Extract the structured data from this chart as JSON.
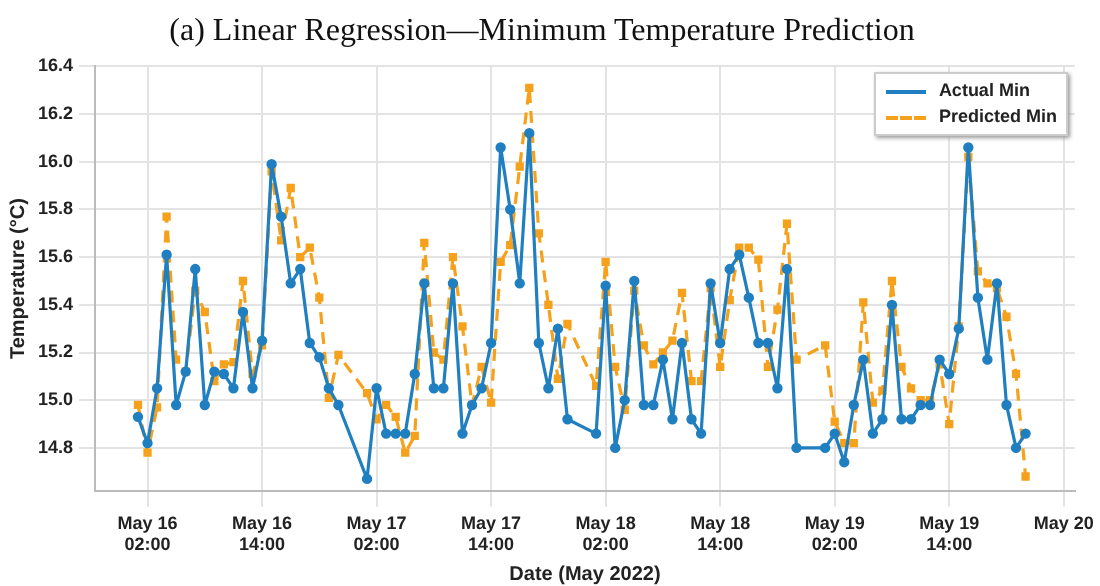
{
  "chart_data": {
    "type": "line",
    "title": "(a) Linear Regression—Minimum Temperature Prediction",
    "xlabel": "Date (May 2022)",
    "ylabel": "Temperature (°C)",
    "x": [
      "2022-05-16T01:00",
      "2022-05-16T02:00",
      "2022-05-16T03:00",
      "2022-05-16T04:00",
      "2022-05-16T05:00",
      "2022-05-16T06:00",
      "2022-05-16T07:00",
      "2022-05-16T08:00",
      "2022-05-16T09:00",
      "2022-05-16T10:00",
      "2022-05-16T11:00",
      "2022-05-16T12:00",
      "2022-05-16T13:00",
      "2022-05-16T14:00",
      "2022-05-16T15:00",
      "2022-05-16T16:00",
      "2022-05-16T17:00",
      "2022-05-16T18:00",
      "2022-05-16T19:00",
      "2022-05-16T20:00",
      "2022-05-16T21:00",
      "2022-05-16T22:00",
      "2022-05-17T01:00",
      "2022-05-17T02:00",
      "2022-05-17T03:00",
      "2022-05-17T04:00",
      "2022-05-17T05:00",
      "2022-05-17T06:00",
      "2022-05-17T07:00",
      "2022-05-17T08:00",
      "2022-05-17T09:00",
      "2022-05-17T10:00",
      "2022-05-17T11:00",
      "2022-05-17T12:00",
      "2022-05-17T13:00",
      "2022-05-17T14:00",
      "2022-05-17T15:00",
      "2022-05-17T16:00",
      "2022-05-17T17:00",
      "2022-05-17T18:00",
      "2022-05-17T19:00",
      "2022-05-17T20:00",
      "2022-05-17T21:00",
      "2022-05-17T22:00",
      "2022-05-18T01:00",
      "2022-05-18T02:00",
      "2022-05-18T03:00",
      "2022-05-18T04:00",
      "2022-05-18T05:00",
      "2022-05-18T06:00",
      "2022-05-18T07:00",
      "2022-05-18T08:00",
      "2022-05-18T09:00",
      "2022-05-18T10:00",
      "2022-05-18T11:00",
      "2022-05-18T12:00",
      "2022-05-18T13:00",
      "2022-05-18T14:00",
      "2022-05-18T15:00",
      "2022-05-18T16:00",
      "2022-05-18T17:00",
      "2022-05-18T18:00",
      "2022-05-18T19:00",
      "2022-05-18T20:00",
      "2022-05-18T21:00",
      "2022-05-18T22:00",
      "2022-05-19T01:00",
      "2022-05-19T02:00",
      "2022-05-19T03:00",
      "2022-05-19T04:00",
      "2022-05-19T05:00",
      "2022-05-19T06:00",
      "2022-05-19T07:00",
      "2022-05-19T08:00",
      "2022-05-19T09:00",
      "2022-05-19T10:00",
      "2022-05-19T11:00",
      "2022-05-19T12:00",
      "2022-05-19T13:00",
      "2022-05-19T14:00",
      "2022-05-19T15:00",
      "2022-05-19T16:00",
      "2022-05-19T17:00",
      "2022-05-19T18:00",
      "2022-05-19T19:00",
      "2022-05-19T20:00",
      "2022-05-19T21:00",
      "2022-05-19T22:00"
    ],
    "series": [
      {
        "name": "Actual Min",
        "color": "#1f7fc0",
        "marker": "circle",
        "line_style": "solid",
        "values": [
          14.93,
          14.82,
          15.05,
          15.61,
          14.98,
          15.12,
          15.55,
          14.98,
          15.12,
          15.11,
          15.05,
          15.37,
          15.05,
          15.25,
          15.99,
          15.77,
          15.49,
          15.55,
          15.24,
          15.18,
          15.05,
          14.98,
          14.67,
          15.05,
          14.86,
          14.86,
          14.86,
          15.11,
          15.49,
          15.05,
          15.05,
          15.49,
          14.86,
          14.98,
          15.05,
          15.24,
          16.06,
          15.8,
          15.49,
          16.12,
          15.24,
          15.05,
          15.3,
          14.92,
          14.86,
          15.48,
          14.8,
          15.0,
          15.5,
          14.98,
          14.98,
          15.17,
          14.92,
          15.24,
          14.92,
          14.86,
          15.49,
          15.24,
          15.55,
          15.61,
          15.43,
          15.24,
          15.24,
          15.05,
          15.55,
          14.8,
          14.8,
          14.86,
          14.74,
          14.98,
          15.17,
          14.86,
          14.92,
          15.4,
          14.92,
          14.92,
          14.98,
          14.98,
          15.17,
          15.11,
          15.3,
          16.06,
          15.43,
          15.17,
          15.49,
          14.98,
          14.8,
          14.86
        ]
      },
      {
        "name": "Predicted Min",
        "color": "#f5a11c",
        "marker": "square",
        "line_style": "dashed",
        "values": [
          14.98,
          14.78,
          14.97,
          15.77,
          15.17,
          15.12,
          15.46,
          15.37,
          15.08,
          15.15,
          15.16,
          15.5,
          15.11,
          15.23,
          15.96,
          15.67,
          15.89,
          15.6,
          15.64,
          15.43,
          15.01,
          15.19,
          15.03,
          14.92,
          14.98,
          14.93,
          14.78,
          14.85,
          15.66,
          15.2,
          15.17,
          15.6,
          15.31,
          14.98,
          15.14,
          14.99,
          15.58,
          15.65,
          15.98,
          16.31,
          15.7,
          15.4,
          15.09,
          15.32,
          15.06,
          15.58,
          15.14,
          14.96,
          15.46,
          15.23,
          15.15,
          15.2,
          15.25,
          15.45,
          15.08,
          15.08,
          15.47,
          15.14,
          15.42,
          15.64,
          15.64,
          15.59,
          15.14,
          15.38,
          15.74,
          15.17,
          15.23,
          14.91,
          14.82,
          14.82,
          15.41,
          14.99,
          15.04,
          15.5,
          15.14,
          15.05,
          15.0,
          15.0,
          15.15,
          14.9,
          15.31,
          16.02,
          15.54,
          15.49,
          15.47,
          15.35,
          15.11,
          14.68
        ]
      }
    ],
    "xlim": [
      "2022-05-15T20:30",
      "2022-05-20T03:10"
    ],
    "xticks": [
      {
        "value": "2022-05-16T02:00",
        "label": "May 16\n02:00"
      },
      {
        "value": "2022-05-16T14:00",
        "label": "May 16\n14:00"
      },
      {
        "value": "2022-05-17T02:00",
        "label": "May 17\n02:00"
      },
      {
        "value": "2022-05-17T14:00",
        "label": "May 17\n14:00"
      },
      {
        "value": "2022-05-18T02:00",
        "label": "May 18\n02:00"
      },
      {
        "value": "2022-05-18T14:00",
        "label": "May 18\n14:00"
      },
      {
        "value": "2022-05-19T02:00",
        "label": "May 19\n02:00"
      },
      {
        "value": "2022-05-19T14:00",
        "label": "May 19\n14:00"
      },
      {
        "value": "2022-05-20T02:00",
        "label": "May 20"
      }
    ],
    "ylim": [
      14.62,
      16.4
    ],
    "yticks": [
      14.8,
      {
        "value": 15.0,
        "label": "15.0"
      },
      15.2,
      15.4,
      15.6,
      15.8,
      {
        "value": 16.0,
        "label": "16.0"
      },
      16.2,
      16.4
    ],
    "grid": true,
    "legend": "top right"
  }
}
